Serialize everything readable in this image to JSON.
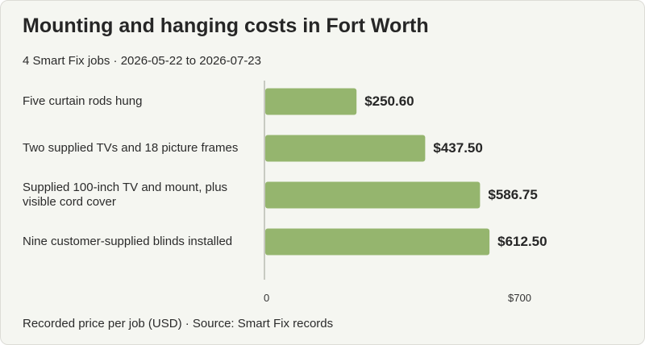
{
  "chart_data": {
    "type": "bar",
    "orientation": "horizontal",
    "title": "Mounting and hanging costs in Fort Worth",
    "subtitle": "4 Smart Fix jobs · 2026-05-22 to 2026-07-23",
    "categories": [
      "Five curtain rods hung",
      "Two supplied TVs and 18 picture frames",
      "Supplied 100-inch TV and mount, plus visible cord cover",
      "Nine customer-supplied blinds installed"
    ],
    "values": [
      250.6,
      437.5,
      586.75,
      612.5
    ],
    "value_labels": [
      "$250.60",
      "$437.50",
      "$586.75",
      "$612.50"
    ],
    "xlim": [
      0,
      700
    ],
    "x_ticks": [
      "0",
      "$700"
    ],
    "bar_color": "#95b56e",
    "axis_color": "#b9bcb2",
    "footer": "Recorded price per job (USD) · Source: Smart Fix records",
    "grid": false,
    "legend": "none"
  }
}
